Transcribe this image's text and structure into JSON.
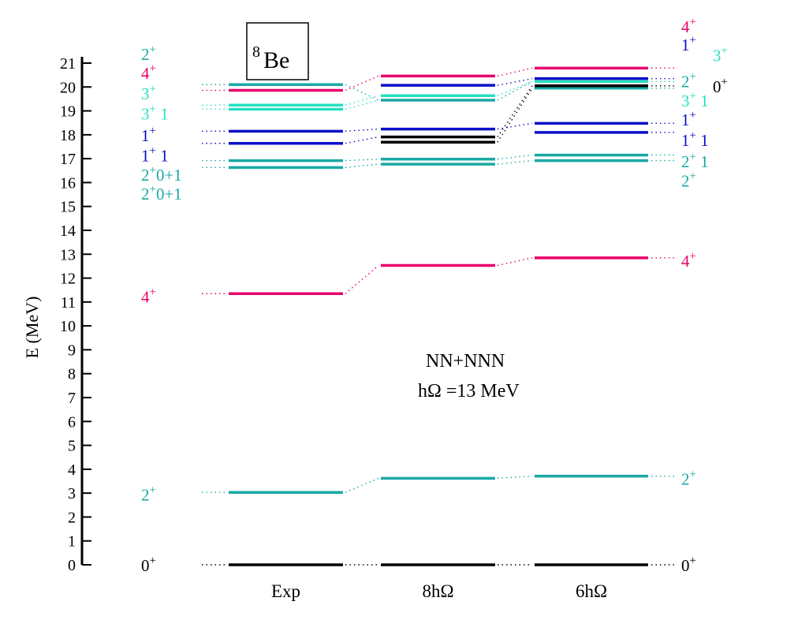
{
  "colors": {
    "black": "#000000",
    "teal": "#1aa9a4",
    "magenta": "#e8006b",
    "blue": "#0a10c8",
    "aqua": "#25e0c0"
  },
  "chart_data": {
    "type": "energy-level-diagram",
    "nucleus": {
      "mass": "8",
      "symbol": "Be"
    },
    "ylabel": "E (MeV)",
    "ylim": [
      0,
      21
    ],
    "yticks": [
      0,
      1,
      2,
      3,
      4,
      5,
      6,
      7,
      8,
      9,
      10,
      11,
      12,
      13,
      14,
      15,
      16,
      17,
      18,
      19,
      20,
      21
    ],
    "annotation_line1": "NN+NNN",
    "annotation_line2": "hΩ =13 MeV",
    "columns": [
      {
        "name": "Exp",
        "levels": [
          {
            "e": 0.0,
            "color": "black"
          },
          {
            "e": 3.03,
            "color": "teal"
          },
          {
            "e": 11.35,
            "color": "magenta"
          },
          {
            "e": 16.63,
            "color": "teal"
          },
          {
            "e": 16.92,
            "color": "teal"
          },
          {
            "e": 17.64,
            "color": "blue"
          },
          {
            "e": 18.15,
            "color": "blue"
          },
          {
            "e": 19.07,
            "color": "aqua"
          },
          {
            "e": 19.24,
            "color": "aqua"
          },
          {
            "e": 19.86,
            "color": "magenta"
          },
          {
            "e": 20.1,
            "color": "teal"
          }
        ]
      },
      {
        "name": "8hΩ",
        "levels": [
          {
            "e": 0.0,
            "color": "black"
          },
          {
            "e": 3.62,
            "color": "teal"
          },
          {
            "e": 12.53,
            "color": "magenta"
          },
          {
            "e": 16.77,
            "color": "teal"
          },
          {
            "e": 16.98,
            "color": "teal"
          },
          {
            "e": 17.69,
            "color": "black"
          },
          {
            "e": 17.91,
            "color": "black"
          },
          {
            "e": 18.24,
            "color": "blue"
          },
          {
            "e": 19.45,
            "color": "teal"
          },
          {
            "e": 19.64,
            "color": "aqua"
          },
          {
            "e": 20.07,
            "color": "blue"
          },
          {
            "e": 20.46,
            "color": "magenta"
          }
        ]
      },
      {
        "name": "6hΩ",
        "levels": [
          {
            "e": 0.0,
            "color": "black"
          },
          {
            "e": 3.71,
            "color": "teal"
          },
          {
            "e": 12.85,
            "color": "magenta"
          },
          {
            "e": 16.92,
            "color": "teal"
          },
          {
            "e": 17.15,
            "color": "teal"
          },
          {
            "e": 18.1,
            "color": "blue"
          },
          {
            "e": 18.48,
            "color": "blue"
          },
          {
            "e": 19.95,
            "color": "teal"
          },
          {
            "e": 20.05,
            "color": "black"
          },
          {
            "e": 20.23,
            "color": "aqua"
          },
          {
            "e": 20.35,
            "color": "blue"
          },
          {
            "e": 20.79,
            "color": "magenta"
          }
        ]
      }
    ],
    "connectors": [
      {
        "from": 3.03,
        "to": 3.62
      },
      {
        "from": 11.35,
        "to": 12.53
      },
      {
        "from": 16.63,
        "to": 16.77
      },
      {
        "from": 16.92,
        "to": 16.98
      },
      {
        "from": 17.64,
        "to": 17.91
      },
      {
        "from": 18.15,
        "to": 18.24
      },
      {
        "from": 19.07,
        "to": 19.45
      },
      {
        "from": 19.24,
        "to": 19.64
      },
      {
        "from": 19.86,
        "to": 20.46
      },
      {
        "from": 20.1,
        "to": 19.45
      },
      {
        "from": 3.62,
        "to": 3.71
      },
      {
        "from": 12.53,
        "to": 12.85
      },
      {
        "from": 16.77,
        "to": 16.92
      },
      {
        "from": 16.98,
        "to": 17.15
      },
      {
        "from": 17.69,
        "to": 19.95
      },
      {
        "from": 17.91,
        "to": 20.05
      },
      {
        "from": 18.24,
        "to": 18.48
      },
      {
        "from": 19.45,
        "to": 20.23
      },
      {
        "from": 19.64,
        "to": 20.23
      },
      {
        "from": 20.07,
        "to": 20.35
      },
      {
        "from": 20.46,
        "to": 20.79
      }
    ],
    "left_labels": [
      {
        "j": "0",
        "p": "+",
        "suffix": "",
        "y": 0.0,
        "color": "black"
      },
      {
        "j": "2",
        "p": "+",
        "suffix": "",
        "y": 2.95,
        "color": "teal"
      },
      {
        "j": "4",
        "p": "+",
        "suffix": "",
        "y": 11.25,
        "color": "magenta"
      },
      {
        "j": "2",
        "p": "+",
        "suffix": "0+1",
        "y": 15.55,
        "color": "teal"
      },
      {
        "j": "2",
        "p": "+",
        "suffix": "0+1",
        "y": 16.35,
        "color": "teal"
      },
      {
        "j": "1",
        "p": "+",
        "suffix": " 1",
        "y": 17.15,
        "color": "blue"
      },
      {
        "j": "1",
        "p": "+",
        "suffix": "",
        "y": 18.0,
        "color": "blue"
      },
      {
        "j": "3",
        "p": "+",
        "suffix": " 1",
        "y": 18.9,
        "color": "aqua"
      },
      {
        "j": "3",
        "p": "+",
        "suffix": "",
        "y": 19.75,
        "color": "aqua"
      },
      {
        "j": "4",
        "p": "+",
        "suffix": "",
        "y": 20.6,
        "color": "magenta"
      },
      {
        "j": "2",
        "p": "+",
        "suffix": "",
        "y": 21.4,
        "color": "teal"
      }
    ],
    "right_labels": [
      {
        "j": "0",
        "p": "+",
        "suffix": "",
        "y": 0.0,
        "color": "black",
        "dx": 0
      },
      {
        "j": "2",
        "p": "+",
        "suffix": "",
        "y": 3.62,
        "color": "teal",
        "dx": 0
      },
      {
        "j": "4",
        "p": "+",
        "suffix": "",
        "y": 12.75,
        "color": "magenta",
        "dx": 0
      },
      {
        "j": "2",
        "p": "+",
        "suffix": "",
        "y": 16.1,
        "color": "teal",
        "dx": 0
      },
      {
        "j": "2",
        "p": "+",
        "suffix": " 1",
        "y": 16.9,
        "color": "teal",
        "dx": 0
      },
      {
        "j": "1",
        "p": "+",
        "suffix": " 1",
        "y": 17.8,
        "color": "blue",
        "dx": 0
      },
      {
        "j": "1",
        "p": "+",
        "suffix": "",
        "y": 18.65,
        "color": "blue",
        "dx": 0
      },
      {
        "j": "3",
        "p": "+",
        "suffix": " 1",
        "y": 19.45,
        "color": "aqua",
        "dx": 0
      },
      {
        "j": "2",
        "p": "+",
        "suffix": "",
        "y": 20.25,
        "color": "teal",
        "dx": 0
      },
      {
        "j": "0",
        "p": "+",
        "suffix": "",
        "y": 20.05,
        "color": "black",
        "dx": 40
      },
      {
        "j": "3",
        "p": "+",
        "suffix": "",
        "y": 21.35,
        "color": "aqua",
        "dx": 40
      },
      {
        "j": "1",
        "p": "+",
        "suffix": "",
        "y": 21.8,
        "color": "blue",
        "dx": 0
      },
      {
        "j": "4",
        "p": "+",
        "suffix": "",
        "y": 22.55,
        "color": "magenta",
        "dx": 0
      }
    ]
  }
}
